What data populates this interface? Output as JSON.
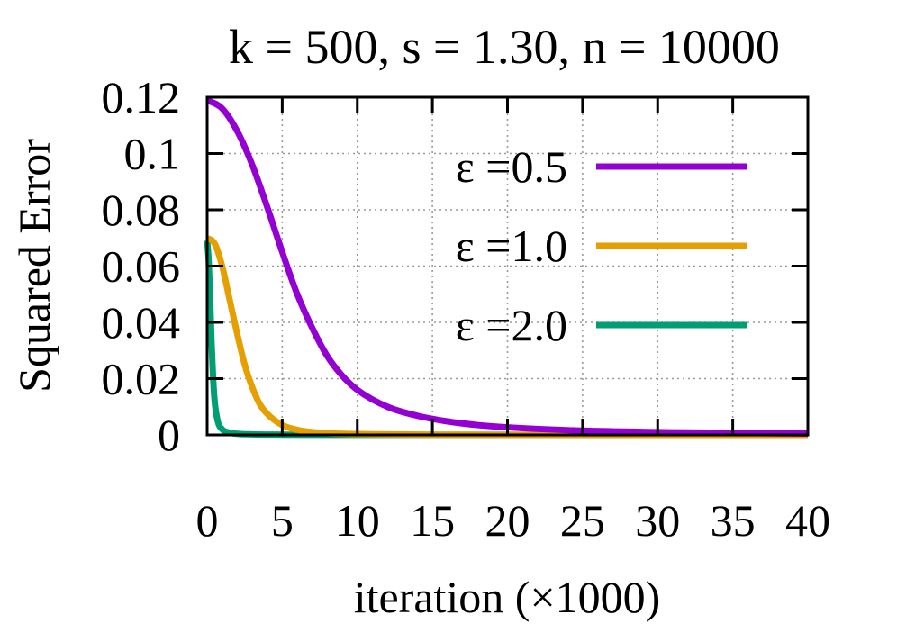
{
  "chart_data": {
    "type": "line",
    "title": "k = 500, s = 1.30, n = 10000",
    "xlabel": "iteration (×1000)",
    "ylabel": "Squared Error",
    "xlim": [
      0,
      40
    ],
    "ylim": [
      0,
      0.12
    ],
    "x_ticks": [
      "0",
      "5",
      "10",
      "15",
      "20",
      "25",
      "30",
      "35",
      "40"
    ],
    "y_ticks": [
      "0",
      "0.02",
      "0.04",
      "0.06",
      "0.08",
      "0.1",
      "0.12"
    ],
    "grid": true,
    "legend_position": "top-right",
    "series": [
      {
        "name": "ε =0.5",
        "color": "#9400d3",
        "x": [
          0,
          1,
          2,
          3,
          4,
          5,
          6,
          7,
          8,
          9,
          10,
          12,
          14,
          16,
          18,
          20,
          25,
          30,
          35,
          40
        ],
        "y": [
          0.119,
          0.116,
          0.108,
          0.096,
          0.081,
          0.065,
          0.05,
          0.038,
          0.028,
          0.021,
          0.016,
          0.01,
          0.0068,
          0.0048,
          0.0035,
          0.0027,
          0.0015,
          0.001,
          0.0007,
          0.0005
        ]
      },
      {
        "name": "ε =1.0",
        "color": "#e69f00",
        "x": [
          0,
          0.5,
          1,
          1.5,
          2,
          2.5,
          3,
          3.5,
          4,
          5,
          6,
          7,
          8,
          10,
          12,
          15,
          20,
          40
        ],
        "y": [
          0.07,
          0.068,
          0.06,
          0.048,
          0.036,
          0.025,
          0.017,
          0.011,
          0.0075,
          0.0035,
          0.0018,
          0.001,
          0.0006,
          0.0003,
          0.0002,
          0.0001,
          5e-05,
          0.0
        ]
      },
      {
        "name": "ε =2.0",
        "color": "#009e73",
        "x": [
          0,
          0.1,
          0.2,
          0.3,
          0.4,
          0.5,
          0.7,
          1,
          1.5,
          2,
          3,
          5,
          10,
          40
        ],
        "y": [
          0.069,
          0.062,
          0.048,
          0.032,
          0.02,
          0.012,
          0.005,
          0.002,
          0.0008,
          0.0004,
          0.0002,
          0.0001,
          5e-05,
          0.0
        ]
      }
    ]
  }
}
